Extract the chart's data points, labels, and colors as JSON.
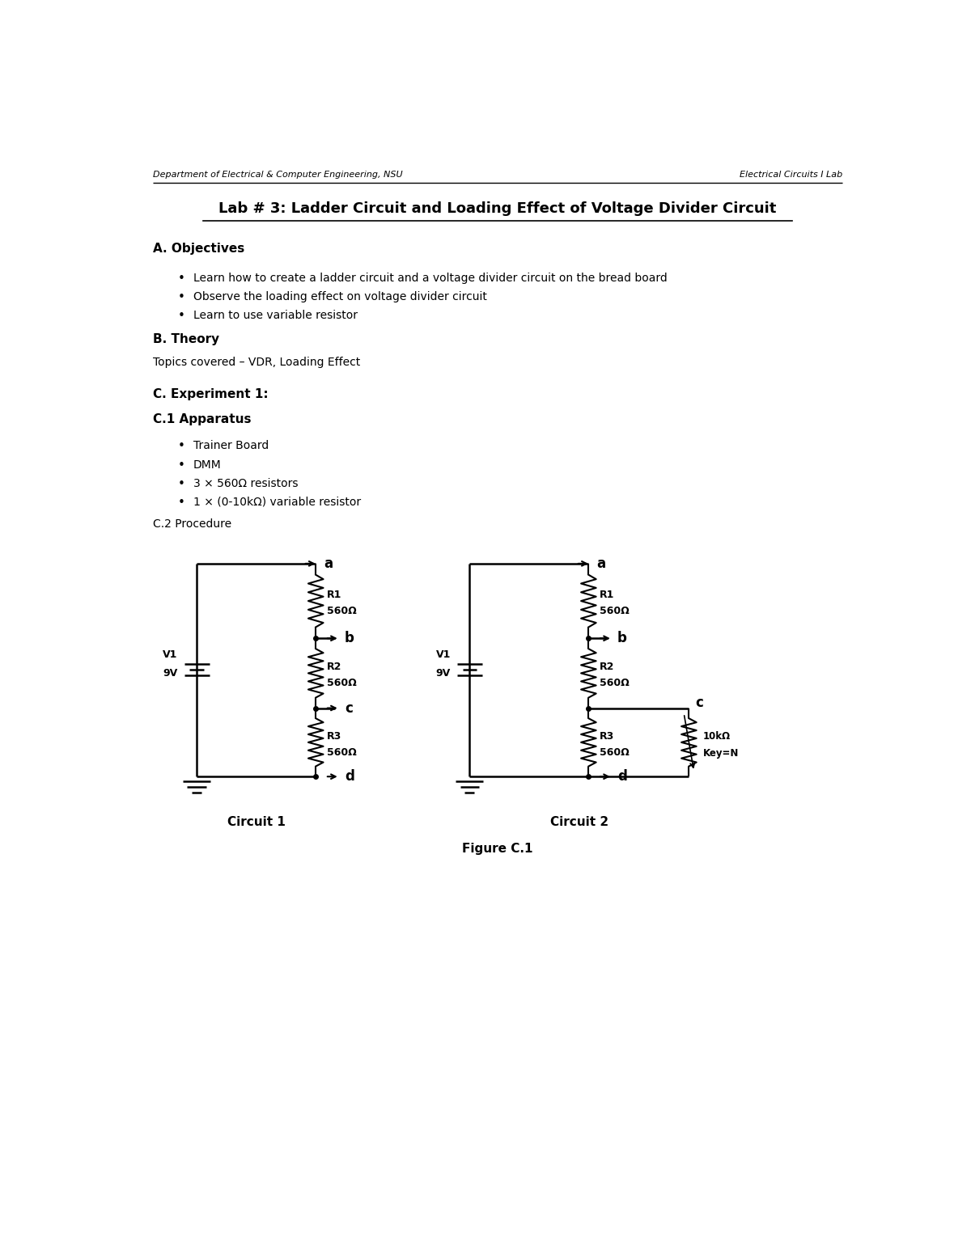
{
  "header_left": "Department of Electrical & Computer Engineering, NSU",
  "header_right": "Electrical Circuits I Lab",
  "title": "Lab # 3: Ladder Circuit and Loading Effect of Voltage Divider Circuit",
  "section_a": "A. Objectives",
  "objectives": [
    "Learn how to create a ladder circuit and a voltage divider circuit on the bread board",
    "Observe the loading effect on voltage divider circuit",
    "Learn to use variable resistor"
  ],
  "section_b": "B. Theory",
  "theory_text": "Topics covered – VDR, Loading Effect",
  "section_c": "C. Experiment 1:",
  "section_c1": "C.1 Apparatus",
  "apparatus": [
    "Trainer Board",
    "DMM",
    "3 × 560Ω resistors",
    "1 × (0-10kΩ) variable resistor"
  ],
  "procedure_label": "C.2 Procedure",
  "circuit1_label": "Circuit 1",
  "circuit2_label": "Circuit 2",
  "figure_label": "Figure C.1",
  "bg_color": "#ffffff",
  "text_color": "#000000",
  "font_size_header": 8,
  "font_size_title": 13,
  "font_size_body": 10,
  "font_size_bold": 11
}
